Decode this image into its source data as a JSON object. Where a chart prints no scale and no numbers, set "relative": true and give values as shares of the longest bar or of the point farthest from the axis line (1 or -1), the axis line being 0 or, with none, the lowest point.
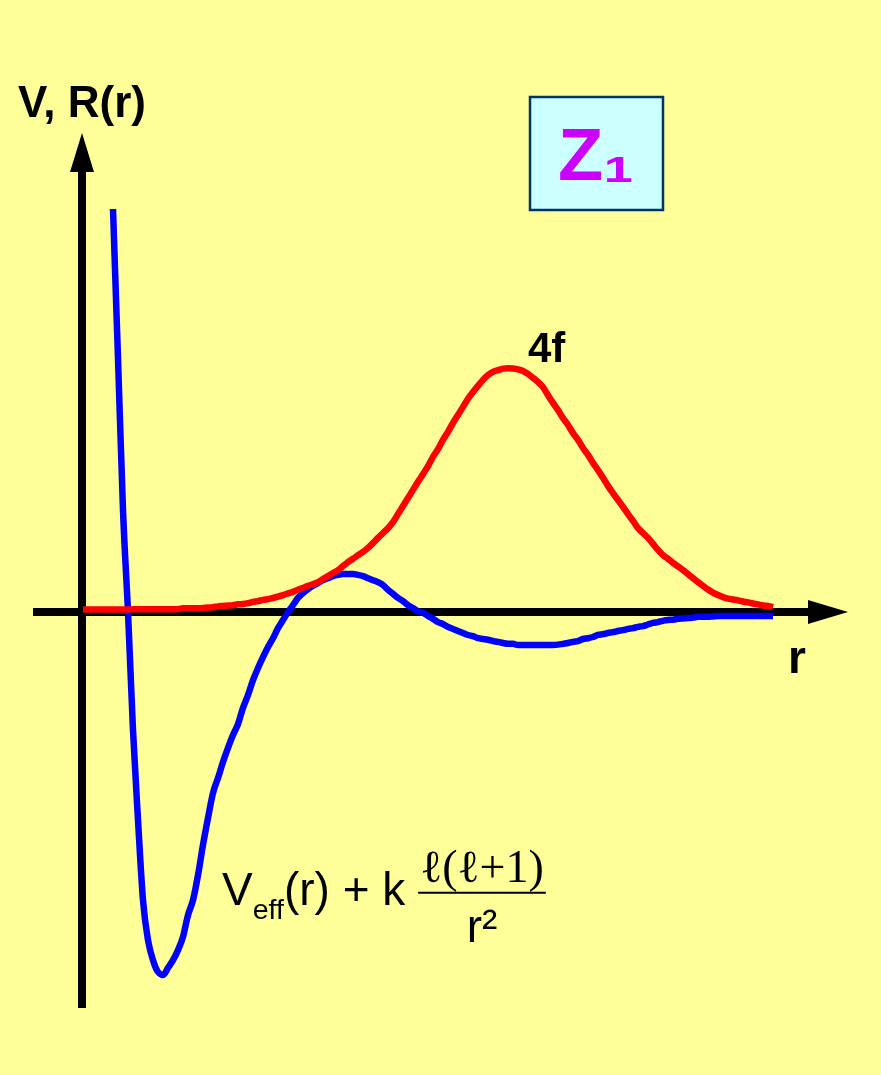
{
  "chart_data": {
    "type": "line",
    "relative": true,
    "xlabel": "r",
    "ylabel": "V, R(r)",
    "annotations": [
      "Z₁"
    ],
    "categories": [
      null,
      null,
      null,
      null,
      null,
      null,
      null,
      null,
      null,
      null,
      null,
      null,
      null,
      null,
      null,
      null,
      null,
      null,
      null,
      null,
      null,
      null,
      null,
      null,
      null,
      null,
      null,
      null,
      null,
      null,
      null,
      null,
      null,
      null,
      null,
      null,
      null,
      null,
      null,
      null,
      null,
      null,
      null,
      null,
      null,
      null,
      null,
      null,
      null,
      null,
      null,
      null,
      null,
      null,
      null,
      null,
      null,
      null,
      null,
      null,
      null,
      null,
      null,
      null,
      null,
      null,
      null,
      null,
      null,
      null,
      null,
      null,
      null,
      null,
      null,
      null,
      null,
      null,
      null,
      null,
      null,
      null,
      null,
      null,
      null,
      null,
      null,
      null,
      null,
      null,
      null,
      null,
      null,
      null,
      null,
      null,
      null,
      null,
      null,
      null,
      null,
      null,
      null,
      null,
      null,
      null,
      null,
      null,
      null,
      null,
      null,
      null,
      null,
      null,
      null,
      null,
      null,
      null,
      null,
      null,
      null,
      null,
      null,
      null,
      null,
      null,
      null,
      null,
      null,
      null,
      null,
      null,
      null,
      null,
      null,
      null,
      null,
      null,
      null
    ],
    "series": [
      {
        "name": "V$_{eff}$(r) + k ℓ(ℓ+1) r²",
        "color": "#0000ff",
        "values": [
          null,
          null,
          null,
          null,
          null,
          null,
          1,
          0.63,
          0.253,
          0,
          -0.293,
          -0.516,
          -0.715,
          -0.814,
          -0.864,
          -0.893,
          -0.901,
          -0.883,
          -0.864,
          -0.839,
          -0.806,
          -0.752,
          -0.715,
          -0.653,
          -0.578,
          -0.511,
          -0.449,
          -0.412,
          -0.372,
          -0.337,
          -0.305,
          -0.278,
          -0.238,
          -0.206,
          -0.169,
          -0.139,
          -0.112,
          -0.087,
          -0.065,
          -0.04,
          -0.02,
          0,
          0.017,
          0.035,
          0.047,
          0.057,
          0.065,
          0.072,
          0.079,
          0.084,
          0.089,
          0.092,
          0.094,
          0.094,
          0.094,
          0.092,
          0.089,
          0.084,
          0.079,
          0.074,
          0.067,
          0.055,
          0.045,
          0.035,
          0.027,
          0.017,
          0.01,
          0.002,
          -0.002,
          -0.01,
          -0.017,
          -0.025,
          -0.03,
          -0.037,
          -0.042,
          -0.047,
          -0.052,
          -0.057,
          -0.06,
          -0.065,
          -0.067,
          -0.069,
          -0.072,
          -0.074,
          -0.077,
          -0.079,
          -0.079,
          -0.082,
          -0.082,
          -0.082,
          -0.082,
          -0.082,
          -0.082,
          -0.082,
          -0.082,
          -0.081,
          -0.079,
          -0.077,
          -0.074,
          -0.072,
          -0.067,
          -0.065,
          -0.062,
          -0.057,
          -0.055,
          -0.052,
          -0.05,
          -0.047,
          -0.045,
          -0.042,
          -0.04,
          -0.037,
          -0.035,
          -0.031,
          -0.027,
          -0.025,
          -0.022,
          -0.02,
          -0.019,
          -0.017,
          -0.016,
          -0.015,
          -0.014,
          -0.012,
          -0.012,
          -0.012,
          -0.011,
          -0.01,
          -0.01,
          -0.01,
          -0.01,
          -0.01,
          -0.01,
          -0.01,
          -0.01,
          -0.01,
          -0.01,
          -0.01,
          -0.01
        ]
      },
      {
        "name": "4f",
        "color": "#ff0000",
        "values": [
          0.006,
          0.006,
          0.006,
          0.006,
          0.006,
          0.006,
          0.006,
          0.006,
          0.006,
          0.006,
          0.007,
          0.007,
          0.007,
          0.007,
          0.007,
          0.007,
          0.007,
          0.007,
          0.007,
          0.007,
          0.009,
          0.009,
          0.009,
          0.009,
          0.01,
          0.011,
          0.012,
          0.014,
          0.015,
          0.016,
          0.017,
          0.019,
          0.02,
          0.022,
          0.025,
          0.027,
          0.03,
          0.032,
          0.035,
          0.038,
          0.042,
          0.046,
          0.05,
          0.055,
          0.06,
          0.065,
          0.069,
          0.074,
          0.082,
          0.089,
          0.097,
          0.104,
          0.114,
          0.124,
          0.132,
          0.141,
          0.149,
          0.159,
          0.171,
          0.184,
          0.196,
          0.208,
          0.223,
          0.243,
          0.263,
          0.283,
          0.303,
          0.323,
          0.342,
          0.362,
          0.385,
          0.404,
          0.427,
          0.447,
          0.469,
          0.489,
          0.509,
          0.529,
          0.546,
          0.561,
          0.576,
          0.588,
          0.596,
          0.6,
          0.604,
          0.605,
          0.604,
          0.602,
          0.598,
          0.591,
          0.581,
          0.571,
          0.558,
          0.538,
          0.519,
          0.501,
          0.481,
          0.464,
          0.444,
          0.427,
          0.407,
          0.39,
          0.37,
          0.352,
          0.333,
          0.313,
          0.295,
          0.278,
          0.261,
          0.243,
          0.226,
          0.208,
          0.196,
          0.184,
          0.169,
          0.154,
          0.141,
          0.132,
          0.122,
          0.113,
          0.104,
          0.094,
          0.084,
          0.074,
          0.065,
          0.056,
          0.048,
          0.042,
          0.037,
          0.033,
          0.031,
          0.029,
          0.026,
          0.024,
          0.021,
          0.019,
          0.016,
          0.015,
          0.012
        ]
      }
    ]
  }
}
